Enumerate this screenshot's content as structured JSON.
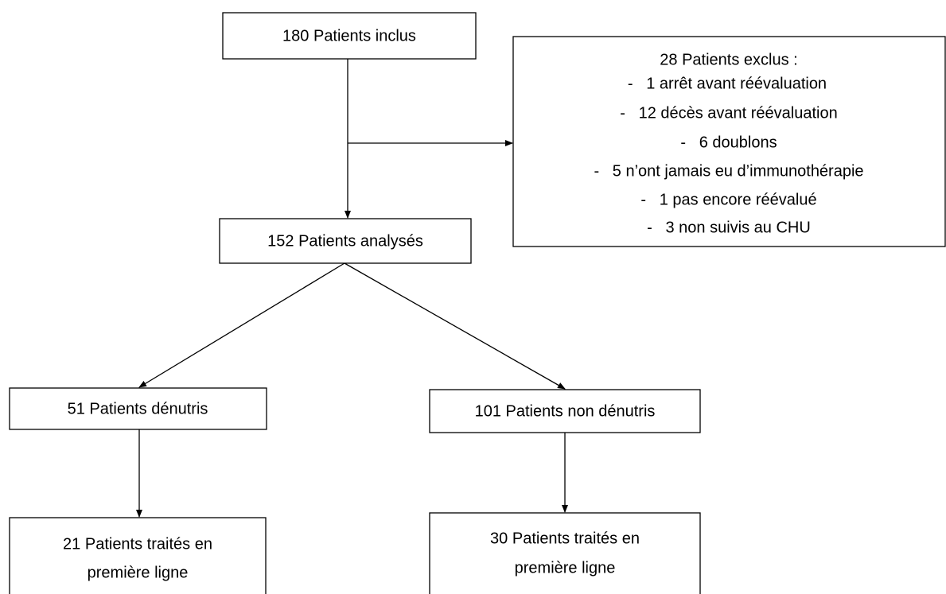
{
  "nodes": [
    {
      "lines": [
        "180 Patients inclus"
      ]
    },
    {
      "title": "28 Patients exclus :",
      "items": [
        "-   1 arrêt avant réévaluation",
        "-   12 décès avant réévaluation",
        "-   6 doublons",
        "-   5 n’ont jamais eu d’immunothérapie",
        "-   1 pas encore réévalué",
        "-   3 non suivis au CHU"
      ]
    },
    {
      "lines": [
        "152 Patients analysés"
      ]
    },
    {
      "lines": [
        "51 Patients dénutris"
      ]
    },
    {
      "lines": [
        "101 Patients non dénutris"
      ]
    },
    {
      "lines": [
        "21 Patients traités en",
        "première ligne"
      ]
    },
    {
      "lines": [
        "30 Patients traités en",
        "première ligne"
      ]
    }
  ]
}
